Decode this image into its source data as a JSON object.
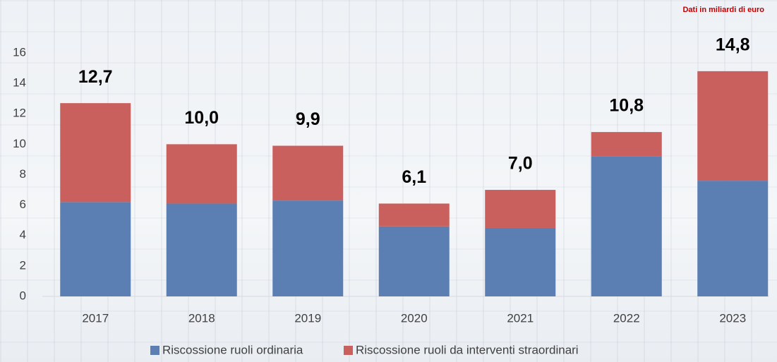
{
  "chart_data": {
    "type": "stacked_bar",
    "note": "Dati in miliardi di euro",
    "categories": [
      "2017",
      "2018",
      "2019",
      "2020",
      "2021",
      "2022",
      "2023"
    ],
    "series": [
      {
        "name": "Riscossione ruoli ordinaria",
        "color": "#5b7fb3",
        "values": [
          6.2,
          6.1,
          6.3,
          4.6,
          4.5,
          9.2,
          7.6
        ]
      },
      {
        "name": "Riscossione ruoli da interventi straordinari",
        "color": "#c9605e",
        "values": [
          6.5,
          3.9,
          3.6,
          1.5,
          2.5,
          1.6,
          7.2
        ]
      }
    ],
    "totals": [
      12.7,
      10.0,
      9.9,
      6.1,
      7.0,
      10.8,
      14.8
    ],
    "total_labels": [
      "12,7",
      "10,0",
      "9,9",
      "6,1",
      "7,0",
      "10,8",
      "14,8"
    ],
    "ylim": [
      0,
      16
    ],
    "yticks": [
      0,
      2,
      4,
      6,
      8,
      10,
      12,
      14,
      16
    ]
  }
}
